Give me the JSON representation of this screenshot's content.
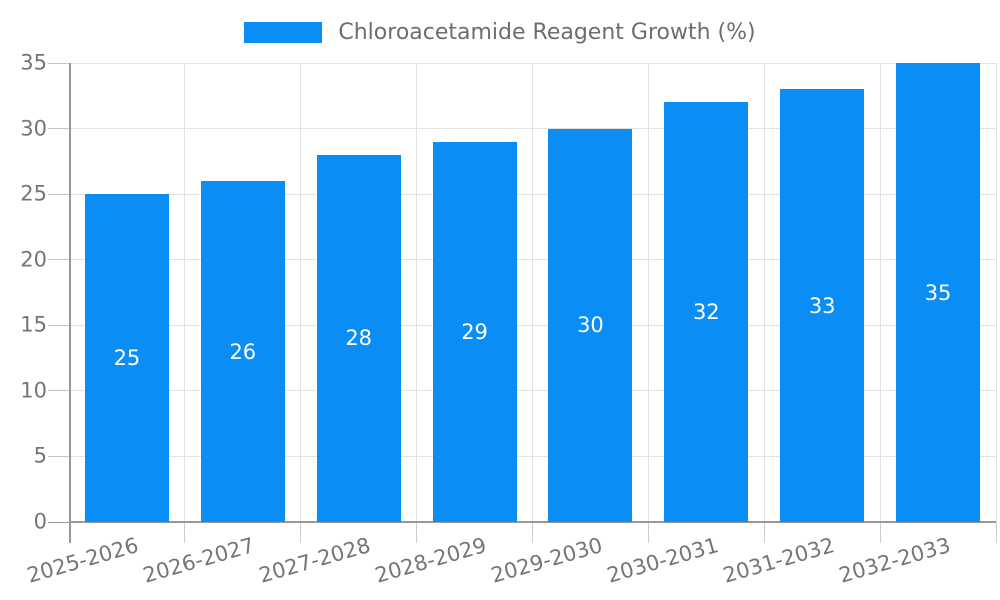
{
  "legend": {
    "label": "Chloroacetamide Reagent Growth (%)"
  },
  "chart_data": {
    "type": "bar",
    "title": "Chloroacetamide Reagent Growth (%)",
    "categories": [
      "2025-2026",
      "2026-2027",
      "2027-2028",
      "2028-2029",
      "2029-2030",
      "2030-2031",
      "2031-2032",
      "2032-2033"
    ],
    "values": [
      25,
      26,
      28,
      29,
      30,
      32,
      33,
      35
    ],
    "xlabel": "",
    "ylabel": "",
    "ylim": [
      0,
      35
    ],
    "yticks": [
      0,
      5,
      10,
      15,
      20,
      25,
      30,
      35
    ],
    "grid": true,
    "legend_position": "top-center",
    "bar_color": "#0a8ef6",
    "bar_label_color": "#ffffff",
    "tick_label_color": "#757575",
    "gridline_color": "#e2e2e2",
    "axis_line_color": "#999999"
  }
}
